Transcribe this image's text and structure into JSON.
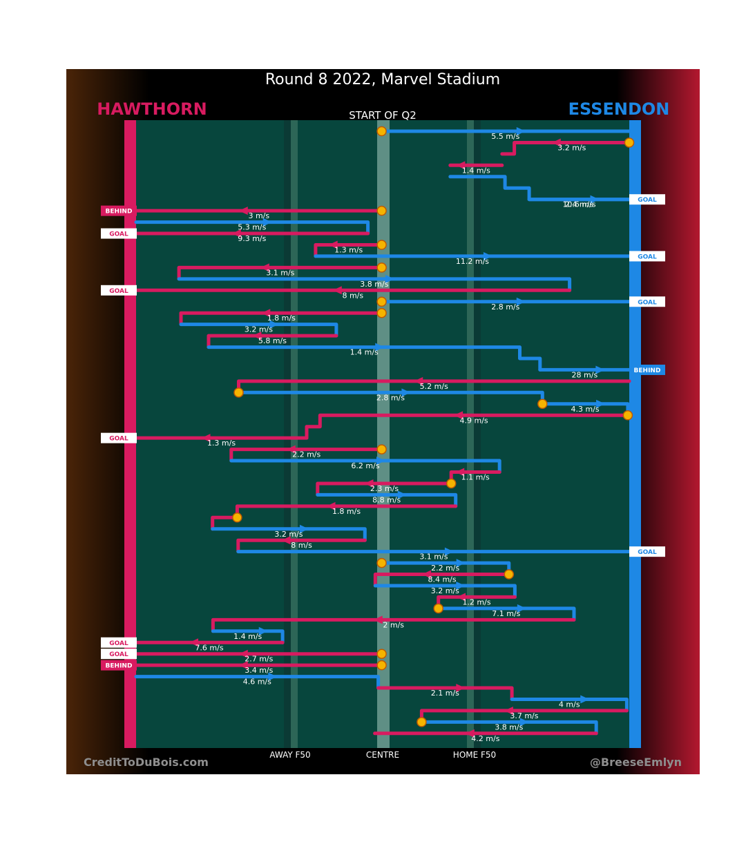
{
  "header": {
    "title": "Round 8 2022, Marvel Stadium",
    "home_team": "HAWTHORN",
    "away_team": "ESSENDON",
    "period": "START OF Q2"
  },
  "footer": {
    "credit_left": "CreditToDuBois.com",
    "credit_right": "@BreeseEmlyn"
  },
  "colors": {
    "hawthorn": "#d81b60",
    "essendon": "#1e88e5",
    "field": "#07463d",
    "start_marker": "#f5b400"
  },
  "chart_data": {
    "type": "line",
    "title": "Round 8 2022, Marvel Stadium",
    "subtitle": "START OF Q2",
    "x_axis_labels": [
      "AWAY F50",
      "CENTRE",
      "HOME F50"
    ],
    "x_range": [
      0,
      100
    ],
    "x_meaning": "ground position between Hawthorn goal (0) and Essendon goal (100)",
    "grid": false,
    "legend": "none",
    "teams": [
      {
        "name": "HAWTHORN",
        "color": "#d81b60",
        "side": "left"
      },
      {
        "name": "ESSENDON",
        "color": "#1e88e5",
        "side": "right"
      }
    ],
    "chains": [
      {
        "row": 1,
        "team": "ESSENDON",
        "speed": "5.5 m/s",
        "path": [
          [
            49.8,
            1
          ],
          [
            100,
            1
          ]
        ]
      },
      {
        "row": 2,
        "team": "HAWTHORN",
        "speed": "3.2 m/s",
        "path": [
          [
            100,
            2
          ],
          [
            76.7,
            2
          ],
          [
            76.7,
            3
          ],
          [
            74.2,
            3
          ]
        ]
      },
      {
        "row": 4,
        "team": "HAWTHORN",
        "speed": "1.4 m/s",
        "path": [
          [
            74.2,
            4
          ],
          [
            63.7,
            4
          ]
        ]
      },
      {
        "row": 4,
        "team": "ESSENDON",
        "speed": "2.4 m/s",
        "path": [
          [
            63.7,
            5
          ],
          [
            74.8,
            5
          ],
          [
            74.8,
            6
          ],
          [
            79.7,
            6
          ],
          [
            79.7,
            7
          ],
          [
            100,
            7
          ]
        ]
      },
      {
        "row": 7,
        "team": "ESSENDON",
        "speed": "10.6 m/s",
        "result": "GOAL",
        "path": [
          [
            79.7,
            7
          ],
          [
            100,
            7
          ]
        ]
      },
      {
        "row": 8,
        "team": "HAWTHORN",
        "speed": "3 m/s",
        "result": "BEHIND",
        "path": [
          [
            49.8,
            8
          ],
          [
            0,
            8
          ]
        ]
      },
      {
        "row": 9,
        "team": "ESSENDON",
        "speed": "5.3 m/s",
        "path": [
          [
            0,
            9
          ],
          [
            47,
            9
          ],
          [
            47,
            10
          ]
        ]
      },
      {
        "row": 10,
        "team": "HAWTHORN",
        "speed": "9.3 m/s",
        "result": "GOAL",
        "path": [
          [
            47,
            10
          ],
          [
            0,
            10
          ]
        ]
      },
      {
        "row": 11,
        "team": "HAWTHORN",
        "speed": "1.3 m/s",
        "path": [
          [
            49.8,
            11
          ],
          [
            36.4,
            11
          ],
          [
            36.4,
            12
          ]
        ]
      },
      {
        "row": 12,
        "team": "ESSENDON",
        "speed": "11.2 m/s",
        "result": "GOAL",
        "path": [
          [
            36.4,
            12
          ],
          [
            100,
            12
          ]
        ]
      },
      {
        "row": 13,
        "team": "HAWTHORN",
        "speed": "3.1 m/s",
        "path": [
          [
            49.8,
            13
          ],
          [
            8.7,
            13
          ],
          [
            8.7,
            14
          ]
        ]
      },
      {
        "row": 14,
        "team": "ESSENDON",
        "speed": "3.8 m/s",
        "path": [
          [
            8.7,
            14
          ],
          [
            87.9,
            14
          ],
          [
            87.9,
            15
          ]
        ]
      },
      {
        "row": 15,
        "team": "HAWTHORN",
        "speed": "8 m/s",
        "result": "GOAL",
        "path": [
          [
            87.9,
            15
          ],
          [
            0,
            15
          ]
        ]
      },
      {
        "row": 16,
        "team": "ESSENDON",
        "speed": "2.8 m/s",
        "result": "GOAL",
        "path": [
          [
            49.8,
            16
          ],
          [
            100,
            16
          ]
        ]
      },
      {
        "row": 17,
        "team": "HAWTHORN",
        "speed": "1.8 m/s",
        "path": [
          [
            49.8,
            17
          ],
          [
            9.1,
            17
          ],
          [
            9.1,
            18
          ]
        ]
      },
      {
        "row": 18,
        "team": "ESSENDON",
        "speed": "3.2 m/s",
        "path": [
          [
            9.1,
            18
          ],
          [
            40.6,
            18
          ],
          [
            40.6,
            19
          ]
        ]
      },
      {
        "row": 19,
        "team": "HAWTHORN",
        "speed": "5.8 m/s",
        "path": [
          [
            40.6,
            19
          ],
          [
            14.7,
            19
          ],
          [
            14.7,
            20
          ]
        ]
      },
      {
        "row": 20,
        "team": "ESSENDON",
        "speed": "1.4 m/s",
        "path": [
          [
            14.7,
            20
          ],
          [
            77.8,
            20
          ],
          [
            77.8,
            21
          ],
          [
            81.9,
            21
          ],
          [
            81.9,
            22
          ]
        ]
      },
      {
        "row": 22,
        "team": "ESSENDON",
        "speed": "28 m/s",
        "result": "BEHIND",
        "path": [
          [
            81.9,
            22
          ],
          [
            100,
            22
          ]
        ]
      },
      {
        "row": 23,
        "team": "HAWTHORN",
        "speed": "5.2 m/s",
        "path": [
          [
            100,
            23
          ],
          [
            20.8,
            23
          ],
          [
            20.8,
            24
          ]
        ]
      },
      {
        "row": 24,
        "team": "ESSENDON",
        "speed": "2.8 m/s",
        "path": [
          [
            20.8,
            24
          ],
          [
            82.4,
            24
          ],
          [
            82.4,
            25
          ]
        ]
      },
      {
        "row": 25,
        "team": "ESSENDON",
        "speed": "4.3 m/s",
        "path": [
          [
            82.4,
            25
          ],
          [
            99.7,
            25
          ],
          [
            99.7,
            26
          ]
        ]
      },
      {
        "row": 26,
        "team": "HAWTHORN",
        "speed": "4.9 m/s",
        "path": [
          [
            99.7,
            26
          ],
          [
            37.3,
            26
          ],
          [
            37.3,
            27
          ],
          [
            34.6,
            27
          ],
          [
            34.6,
            28
          ]
        ]
      },
      {
        "row": 28,
        "team": "HAWTHORN",
        "speed": "1.3 m/s",
        "result": "GOAL",
        "path": [
          [
            34.6,
            28
          ],
          [
            0,
            28
          ]
        ]
      },
      {
        "row": 29,
        "team": "HAWTHORN",
        "speed": "2.2 m/s",
        "path": [
          [
            49.8,
            29
          ],
          [
            19.3,
            29
          ],
          [
            19.3,
            30
          ]
        ]
      },
      {
        "row": 30,
        "team": "ESSENDON",
        "speed": "6.2 m/s",
        "path": [
          [
            19.3,
            30
          ],
          [
            73.7,
            30
          ],
          [
            73.7,
            31
          ]
        ]
      },
      {
        "row": 31,
        "team": "HAWTHORN",
        "speed": "1.1 m/s",
        "path": [
          [
            73.7,
            31
          ],
          [
            63.9,
            31
          ],
          [
            63.9,
            32
          ]
        ]
      },
      {
        "row": 32,
        "team": "HAWTHORN",
        "speed": "2.3 m/s",
        "path": [
          [
            63.9,
            32
          ],
          [
            36.8,
            32
          ],
          [
            36.8,
            33
          ]
        ]
      },
      {
        "row": 33,
        "team": "ESSENDON",
        "speed": "8.8 m/s",
        "path": [
          [
            36.8,
            33
          ],
          [
            64.8,
            33
          ],
          [
            64.8,
            34
          ]
        ]
      },
      {
        "row": 34,
        "team": "HAWTHORN",
        "speed": "1.8 m/s",
        "path": [
          [
            64.8,
            34
          ],
          [
            20.5,
            34
          ],
          [
            20.5,
            35
          ]
        ]
      },
      {
        "row": 35,
        "team": "HAWTHORN",
        "speed": "",
        "path": [
          [
            20.5,
            35
          ],
          [
            15.5,
            35
          ],
          [
            15.5,
            36
          ]
        ]
      },
      {
        "row": 36,
        "team": "ESSENDON",
        "speed": "3.2 m/s",
        "path": [
          [
            15.5,
            36
          ],
          [
            46.4,
            36
          ],
          [
            46.4,
            37
          ]
        ]
      },
      {
        "row": 37,
        "team": "HAWTHORN",
        "speed": "8 m/s",
        "path": [
          [
            46.4,
            37
          ],
          [
            20.7,
            37
          ],
          [
            20.7,
            38
          ]
        ]
      },
      {
        "row": 38,
        "team": "ESSENDON",
        "speed": "3.1 m/s",
        "result": "GOAL",
        "path": [
          [
            20.7,
            38
          ],
          [
            100,
            38
          ]
        ]
      },
      {
        "row": 39,
        "team": "ESSENDON",
        "speed": "2.2 m/s",
        "path": [
          [
            49.8,
            39
          ],
          [
            75.6,
            39
          ],
          [
            75.6,
            40
          ]
        ]
      },
      {
        "row": 40,
        "team": "HAWTHORN",
        "speed": "8.4 m/s",
        "path": [
          [
            75.6,
            40
          ],
          [
            48.5,
            40
          ],
          [
            48.5,
            41
          ]
        ]
      },
      {
        "row": 41,
        "team": "ESSENDON",
        "speed": "3.2 m/s",
        "path": [
          [
            48.5,
            41
          ],
          [
            76.8,
            41
          ],
          [
            76.8,
            42
          ]
        ]
      },
      {
        "row": 42,
        "team": "HAWTHORN",
        "speed": "1.2 m/s",
        "path": [
          [
            76.8,
            42
          ],
          [
            61.3,
            42
          ],
          [
            61.3,
            43
          ]
        ]
      },
      {
        "row": 43,
        "team": "ESSENDON",
        "speed": "7.1 m/s",
        "path": [
          [
            61.3,
            43
          ],
          [
            88.8,
            43
          ],
          [
            88.8,
            44
          ]
        ]
      },
      {
        "row": 44,
        "team": "HAWTHORN",
        "speed": "2 m/s",
        "path": [
          [
            88.8,
            44
          ],
          [
            15.6,
            44
          ],
          [
            15.6,
            45
          ]
        ]
      },
      {
        "row": 45,
        "team": "ESSENDON",
        "speed": "1.4 m/s",
        "path": [
          [
            15.6,
            45
          ],
          [
            29.7,
            45
          ],
          [
            29.7,
            46
          ]
        ]
      },
      {
        "row": 46,
        "team": "HAWTHORN",
        "speed": "7.6 m/s",
        "result": "GOAL",
        "path": [
          [
            29.7,
            46
          ],
          [
            0,
            46
          ]
        ]
      },
      {
        "row": 47,
        "team": "HAWTHORN",
        "speed": "2.7 m/s",
        "result": "GOAL",
        "path": [
          [
            49.8,
            47
          ],
          [
            0,
            47
          ]
        ]
      },
      {
        "row": 48,
        "team": "HAWTHORN",
        "speed": "3.4 m/s",
        "result": "BEHIND",
        "path": [
          [
            49.8,
            48
          ],
          [
            0,
            48
          ]
        ]
      },
      {
        "row": 49,
        "team": "ESSENDON",
        "speed": "4.6 m/s",
        "path": [
          [
            0,
            49
          ],
          [
            49.1,
            49
          ],
          [
            49.1,
            50
          ]
        ]
      },
      {
        "row": 50,
        "team": "HAWTHORN",
        "speed": "2.1 m/s",
        "path": [
          [
            49.1,
            50
          ],
          [
            76.2,
            50
          ],
          [
            76.2,
            51
          ]
        ]
      },
      {
        "row": 51,
        "team": "ESSENDON",
        "speed": "4 m/s",
        "path": [
          [
            76.2,
            51
          ],
          [
            99.5,
            51
          ],
          [
            99.5,
            52
          ]
        ]
      },
      {
        "row": 52,
        "team": "HAWTHORN",
        "speed": "3.7 m/s",
        "path": [
          [
            99.5,
            52
          ],
          [
            57.9,
            52
          ],
          [
            57.9,
            53
          ]
        ]
      },
      {
        "row": 53,
        "team": "ESSENDON",
        "speed": "3.8 m/s",
        "path": [
          [
            57.9,
            53
          ],
          [
            93.3,
            53
          ],
          [
            93.3,
            54
          ]
        ]
      },
      {
        "row": 54,
        "team": "HAWTHORN",
        "speed": "4.2 m/s",
        "path": [
          [
            93.3,
            54
          ],
          [
            48.4,
            54
          ]
        ]
      }
    ],
    "starts": [
      {
        "row": 1,
        "x": 49.8
      },
      {
        "row": 2,
        "x": 100
      },
      {
        "row": 8,
        "x": 49.8
      },
      {
        "row": 11,
        "x": 49.8
      },
      {
        "row": 13,
        "x": 49.8
      },
      {
        "row": 16,
        "x": 49.8
      },
      {
        "row": 17,
        "x": 49.8
      },
      {
        "row": 24,
        "x": 20.8
      },
      {
        "row": 25,
        "x": 82.4
      },
      {
        "row": 26,
        "x": 99.7
      },
      {
        "row": 29,
        "x": 49.8
      },
      {
        "row": 32,
        "x": 63.9
      },
      {
        "row": 35,
        "x": 20.5
      },
      {
        "row": 39,
        "x": 49.8
      },
      {
        "row": 40,
        "x": 75.6
      },
      {
        "row": 43,
        "x": 61.3
      },
      {
        "row": 47,
        "x": 49.8
      },
      {
        "row": 48,
        "x": 49.8
      },
      {
        "row": 53,
        "x": 57.9
      }
    ],
    "results": [
      {
        "row": 7,
        "team": "ESSENDON",
        "label": "GOAL"
      },
      {
        "row": 8,
        "team": "HAWTHORN",
        "label": "BEHIND"
      },
      {
        "row": 10,
        "team": "HAWTHORN",
        "label": "GOAL"
      },
      {
        "row": 12,
        "team": "ESSENDON",
        "label": "GOAL"
      },
      {
        "row": 15,
        "team": "HAWTHORN",
        "label": "GOAL"
      },
      {
        "row": 16,
        "team": "ESSENDON",
        "label": "GOAL"
      },
      {
        "row": 22,
        "team": "ESSENDON",
        "label": "BEHIND"
      },
      {
        "row": 28,
        "team": "HAWTHORN",
        "label": "GOAL"
      },
      {
        "row": 38,
        "team": "ESSENDON",
        "label": "GOAL"
      },
      {
        "row": 46,
        "team": "HAWTHORN",
        "label": "GOAL"
      },
      {
        "row": 47,
        "team": "HAWTHORN",
        "label": "GOAL"
      },
      {
        "row": 48,
        "team": "HAWTHORN",
        "label": "BEHIND"
      }
    ]
  }
}
